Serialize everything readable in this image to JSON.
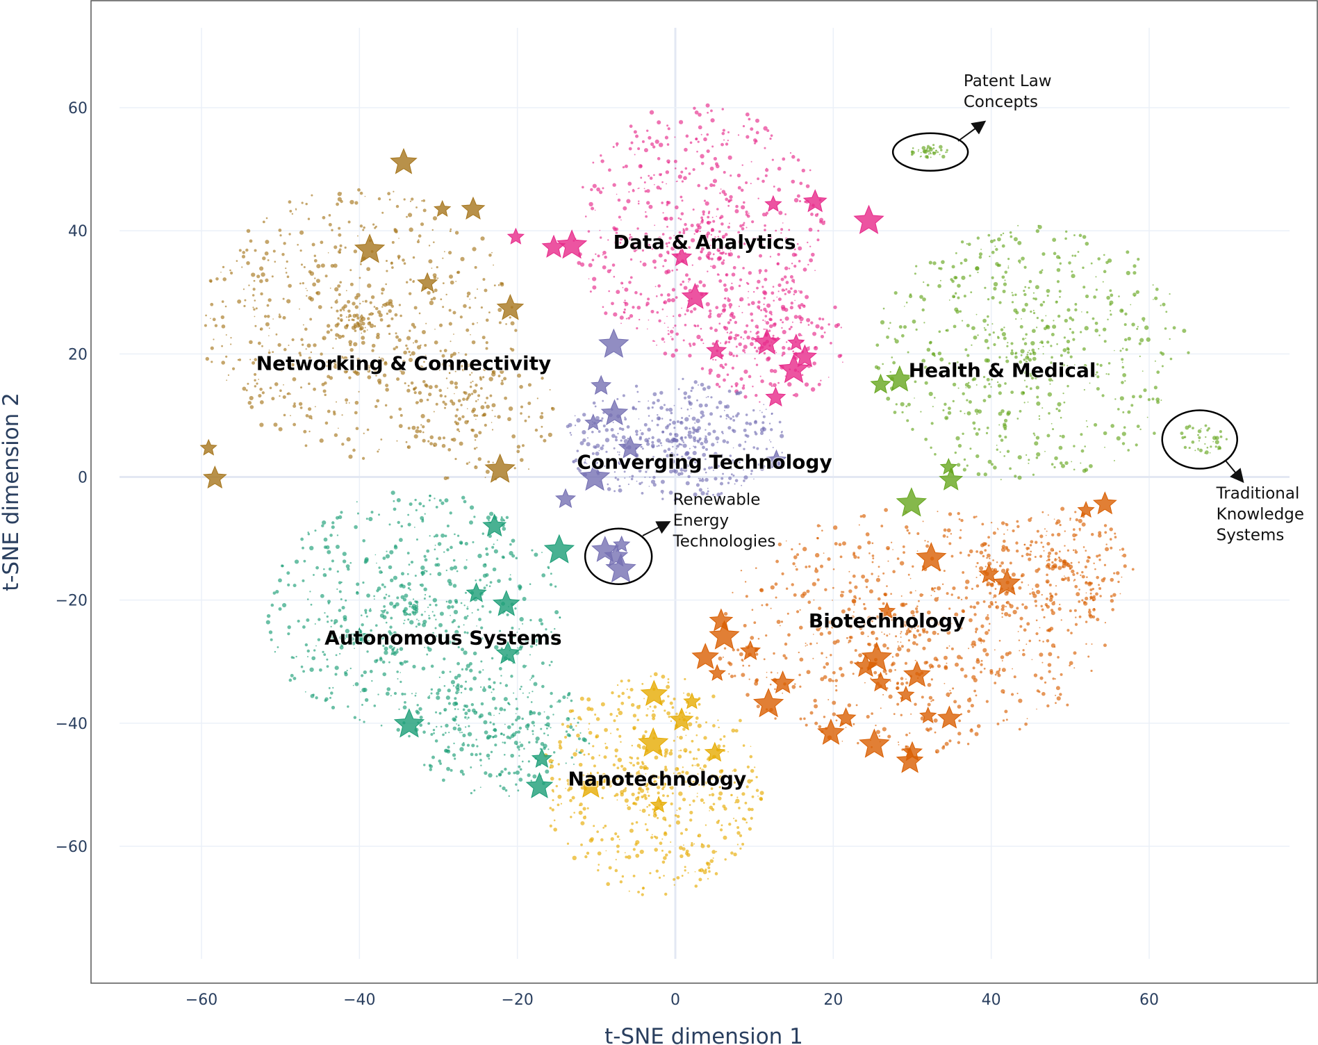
{
  "chart_data": {
    "type": "scatter",
    "title": "",
    "xlabel": "t-SNE dimension 1",
    "ylabel": "t-SNE dimension 2",
    "xlim": [
      -72,
      78
    ],
    "ylim": [
      -78,
      77
    ],
    "xticks": [
      -60,
      -40,
      -20,
      0,
      20,
      40,
      60
    ],
    "yticks": [
      60,
      40,
      20,
      0,
      -20,
      -40,
      -60
    ],
    "grid": true,
    "legend": "none",
    "clusters": [
      {
        "name": "Data & Analytics",
        "color": "#e7298a",
        "label_at": [
          3.7,
          38.2
        ],
        "stars": [
          [
            -20.2,
            39
          ],
          [
            -15.4,
            37.3
          ],
          [
            -13.1,
            37.6
          ],
          [
            0.8,
            35.7
          ],
          [
            2.5,
            29.2
          ],
          [
            12.4,
            44.3
          ],
          [
            17.7,
            44.7
          ],
          [
            24.5,
            41.6
          ],
          [
            5.2,
            20.5
          ],
          [
            11.6,
            21.8
          ],
          [
            15.3,
            21.8
          ],
          [
            16.4,
            19.5
          ],
          [
            15,
            17.4
          ],
          [
            12.7,
            12.9
          ]
        ]
      },
      {
        "name": "Networking & Connectivity",
        "color": "#a6761d",
        "label_at": [
          -34.4,
          18.5
        ],
        "stars": [
          [
            -34.4,
            51.1
          ],
          [
            -29.5,
            43.5
          ],
          [
            -25.6,
            43.5
          ],
          [
            -38.7,
            36.9
          ],
          [
            -31.4,
            31.5
          ],
          [
            -20.9,
            27.4
          ],
          [
            -59.1,
            4.7
          ],
          [
            -58.3,
            -0.2
          ],
          [
            -22.2,
            1.2
          ]
        ]
      },
      {
        "name": "Health & Medical",
        "color": "#66a61e",
        "label_at": [
          41.4,
          17.4
        ],
        "stars": [
          [
            26,
            15
          ],
          [
            28.4,
            15.8
          ],
          [
            34.6,
            1.6
          ],
          [
            34.9,
            -0.5
          ],
          [
            29.9,
            -4.3
          ]
        ]
      },
      {
        "name": "Converging Technology",
        "color": "#7570b3",
        "label_at": [
          3.7,
          2.5
        ],
        "stars": [
          [
            -7.8,
            21.5
          ],
          [
            -9.4,
            14.8
          ],
          [
            -7.7,
            10.3
          ],
          [
            -10.4,
            8.8
          ],
          [
            -5.7,
            4.7
          ],
          [
            -10.2,
            -0.1
          ],
          [
            -13.9,
            -3.6
          ],
          [
            -8.9,
            -11.9
          ],
          [
            -6.8,
            -11
          ],
          [
            -7.5,
            -12.9
          ],
          [
            -6.9,
            -15
          ],
          [
            12.8,
            2.7
          ]
        ]
      },
      {
        "name": "Autonomous Systems",
        "color": "#1b9e77",
        "label_at": [
          -29.4,
          -26.1
        ],
        "stars": [
          [
            -22.9,
            -8
          ],
          [
            -14.7,
            -11.9
          ],
          [
            -25.2,
            -18.9
          ],
          [
            -21.4,
            -20.7
          ],
          [
            -40,
            -25.9
          ],
          [
            -21.2,
            -28.7
          ],
          [
            -33.7,
            -40.2
          ],
          [
            -16.9,
            -45.8
          ],
          [
            -17.2,
            -50.3
          ]
        ]
      },
      {
        "name": "Biotechnology",
        "color": "#d95f02",
        "label_at": [
          26.8,
          -23.3
        ],
        "stars": [
          [
            52,
            -5.4
          ],
          [
            54.4,
            -4.4
          ],
          [
            32.4,
            -13.2
          ],
          [
            39.7,
            -15.8
          ],
          [
            42,
            -17.3
          ],
          [
            26.8,
            -21.8
          ],
          [
            5.8,
            -23.4
          ],
          [
            6.2,
            -25.9
          ],
          [
            9.5,
            -28.3
          ],
          [
            3.8,
            -29.3
          ],
          [
            5.3,
            -31.9
          ],
          [
            24.1,
            -30.8
          ],
          [
            25.5,
            -29.4
          ],
          [
            26,
            -33.4
          ],
          [
            30.6,
            -32.2
          ],
          [
            29.2,
            -35.4
          ],
          [
            13.6,
            -33.5
          ],
          [
            11.8,
            -36.9
          ],
          [
            21.6,
            -39.2
          ],
          [
            19.7,
            -41.6
          ],
          [
            32,
            -38.8
          ],
          [
            34.7,
            -39.2
          ],
          [
            25.2,
            -43.5
          ],
          [
            30,
            -44.7
          ],
          [
            29.7,
            -46.2
          ]
        ]
      },
      {
        "name": "Nanotechnology",
        "color": "#e6ab02",
        "label_at": [
          -2.3,
          -49
        ],
        "stars": [
          [
            -2.7,
            -35.3
          ],
          [
            2.1,
            -36.5
          ],
          [
            0.8,
            -39.5
          ],
          [
            -2.8,
            -43.3
          ],
          [
            5,
            -44.8
          ],
          [
            -10.7,
            -50.2
          ],
          [
            -2.1,
            -53.3
          ]
        ]
      }
    ],
    "annotations": [
      {
        "lines": [
          "Patent Law",
          "Concepts"
        ],
        "circle_at": [
          32.3,
          52.8
        ],
        "text_at": [
          36.5,
          63.5
        ]
      },
      {
        "lines": [
          "Traditional",
          "Knowledge",
          "Systems"
        ],
        "circle_at": [
          66.4,
          6.1
        ],
        "text_at": [
          68.5,
          -3.5
        ]
      },
      {
        "lines": [
          "Renewable",
          "Energy",
          "Technologies"
        ],
        "circle_at": [
          -7.2,
          -12.9
        ],
        "text_at": [
          -0.3,
          -4.5
        ]
      }
    ]
  }
}
